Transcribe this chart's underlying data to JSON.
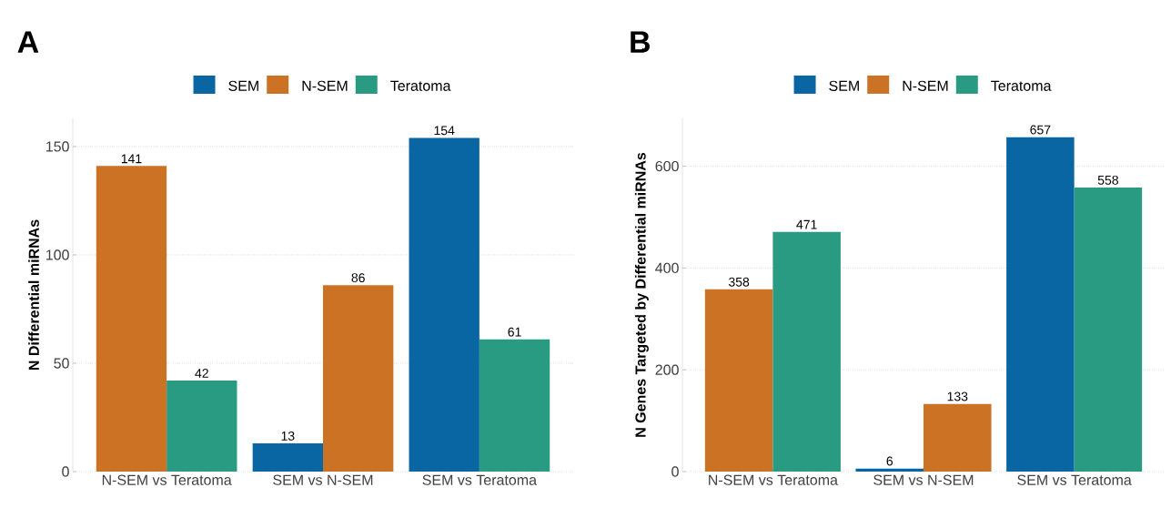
{
  "chart_data": [
    {
      "type": "bar",
      "title": "A",
      "ylabel": "N Differential miRNAs",
      "ylim": [
        0,
        163
      ],
      "categories": [
        "N-SEM  vs  Teratoma",
        "SEM  vs  N-SEM",
        "SEM  vs  Teratoma"
      ],
      "series": [
        {
          "name": "SEM",
          "color": "#0a66a3",
          "values": [
            null,
            13,
            154
          ]
        },
        {
          "name": "N-SEM",
          "color": "#cc7224",
          "values": [
            141,
            86,
            null
          ]
        },
        {
          "name": "Teratoma",
          "color": "#2a9b83",
          "values": [
            42,
            null,
            61
          ]
        }
      ],
      "yticks": [
        0,
        50,
        100,
        150
      ],
      "grid": "y",
      "legend": "top",
      "data_labels": true
    },
    {
      "type": "bar",
      "title": "B",
      "ylabel": "N Genes Targeted by Differential miRNAs",
      "ylim": [
        0,
        694
      ],
      "categories": [
        "N-SEM  vs  Teratoma",
        "SEM  vs  N-SEM",
        "SEM  vs  Teratoma"
      ],
      "series": [
        {
          "name": "SEM",
          "color": "#0a66a3",
          "values": [
            null,
            6,
            657
          ]
        },
        {
          "name": "N-SEM",
          "color": "#cc7224",
          "values": [
            358,
            133,
            null
          ]
        },
        {
          "name": "Teratoma",
          "color": "#2a9b83",
          "values": [
            471,
            null,
            558
          ]
        }
      ],
      "yticks": [
        0,
        200,
        400,
        600
      ],
      "grid": "y",
      "legend": "top",
      "data_labels": true
    }
  ]
}
